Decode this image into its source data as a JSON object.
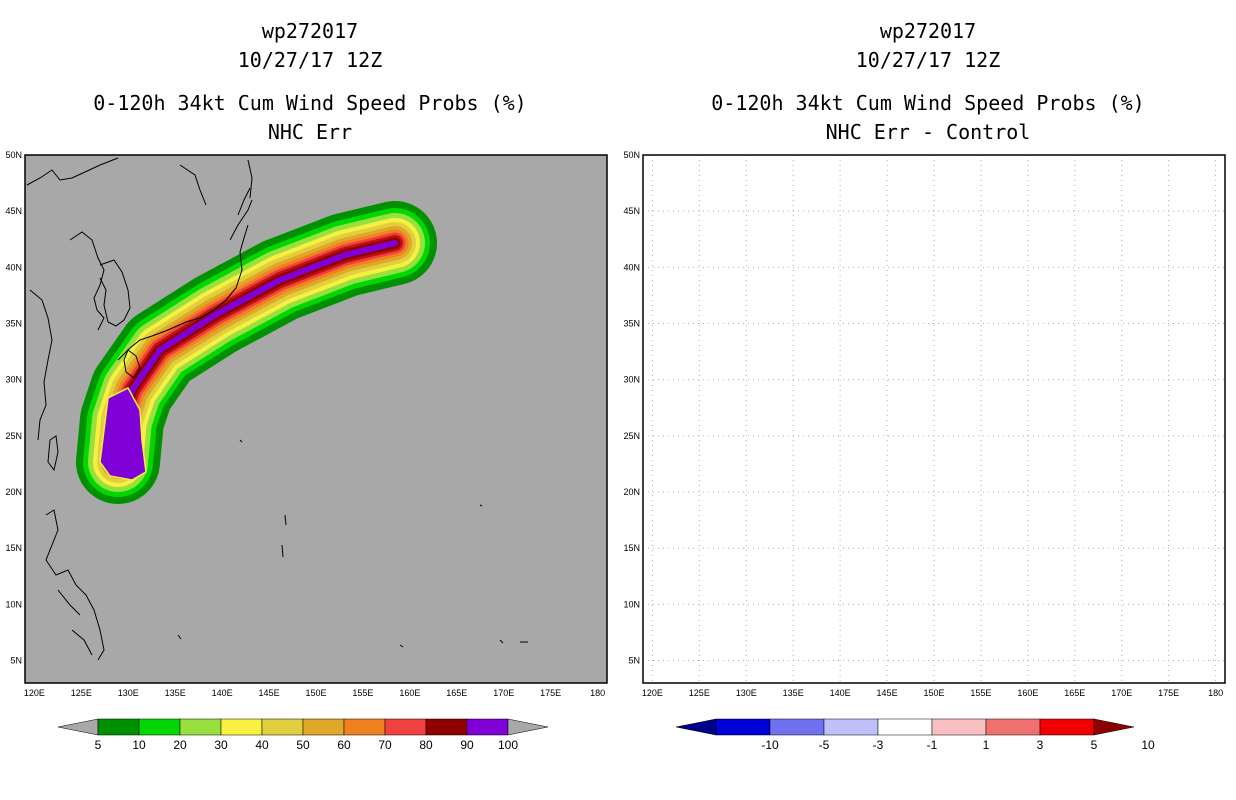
{
  "chart_data": [
    {
      "type": "heatmap",
      "title_lines": [
        "wp272017",
        "10/27/17 12Z",
        "0-120h 34kt Cum Wind Speed Probs (%)",
        "NHC Err"
      ],
      "x_ticks": [
        "120E",
        "125E",
        "130E",
        "135E",
        "140E",
        "145E",
        "150E",
        "155E",
        "160E",
        "165E",
        "170E",
        "175E",
        "180"
      ],
      "y_ticks": [
        "50N",
        "45N",
        "40N",
        "35N",
        "30N",
        "25N",
        "20N",
        "15N",
        "10N",
        "5N"
      ],
      "xlim": [
        119,
        181
      ],
      "ylim": [
        3,
        50
      ],
      "background": "#a8a8a8",
      "colorbar": {
        "labels": [
          "5",
          "10",
          "20",
          "30",
          "40",
          "50",
          "60",
          "70",
          "80",
          "90",
          "100"
        ],
        "colors": [
          "#009000",
          "#00d800",
          "#98e040",
          "#f8f040",
          "#e0d040",
          "#e0a828",
          "#f08020",
          "#f04040",
          "#900000",
          "#8000d8"
        ]
      },
      "swath_levels": [
        {
          "level": 5,
          "color": "#009000"
        },
        {
          "level": 10,
          "color": "#00d800"
        },
        {
          "level": 20,
          "color": "#98e040"
        },
        {
          "level": 30,
          "color": "#f8f040"
        },
        {
          "level": 40,
          "color": "#e0d040"
        },
        {
          "level": 50,
          "color": "#e0a828"
        },
        {
          "level": 60,
          "color": "#f08020"
        },
        {
          "level": 70,
          "color": "#f04040"
        },
        {
          "level": 80,
          "color": "#c01010"
        },
        {
          "level": 90,
          "color": "#900000"
        },
        {
          "level": 100,
          "color": "#8000d8"
        }
      ]
    },
    {
      "type": "heatmap",
      "title_lines": [
        "wp272017",
        "10/27/17 12Z",
        "0-120h 34kt Cum Wind Speed Probs (%)",
        "NHC Err - Control"
      ],
      "x_ticks": [
        "120E",
        "125E",
        "130E",
        "135E",
        "140E",
        "145E",
        "150E",
        "155E",
        "160E",
        "165E",
        "170E",
        "175E",
        "180"
      ],
      "y_ticks": [
        "50N",
        "45N",
        "40N",
        "35N",
        "30N",
        "25N",
        "20N",
        "15N",
        "10N",
        "5N"
      ],
      "xlim": [
        119,
        181
      ],
      "ylim": [
        3,
        50
      ],
      "background": "#ffffff",
      "grid": true,
      "colorbar": {
        "labels": [
          "-10",
          "-5",
          "-3",
          "-1",
          "1",
          "3",
          "5",
          "10"
        ],
        "colors": [
          "#0000d8",
          "#7070f0",
          "#c0c0f8",
          "#ffffff",
          "#f8c0c0",
          "#f07070",
          "#f00000"
        ],
        "end_colors": [
          "#00008c",
          "#8c0000"
        ]
      }
    }
  ]
}
